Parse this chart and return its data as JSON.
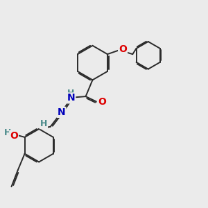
{
  "bg_color": "#ebebeb",
  "bond_color": "#2a2a2a",
  "bond_width": 1.4,
  "dbo": 0.055,
  "atom_colors": {
    "O": "#dd0000",
    "N": "#0000bb",
    "H": "#4a8a8a",
    "C": "#2a2a2a"
  }
}
